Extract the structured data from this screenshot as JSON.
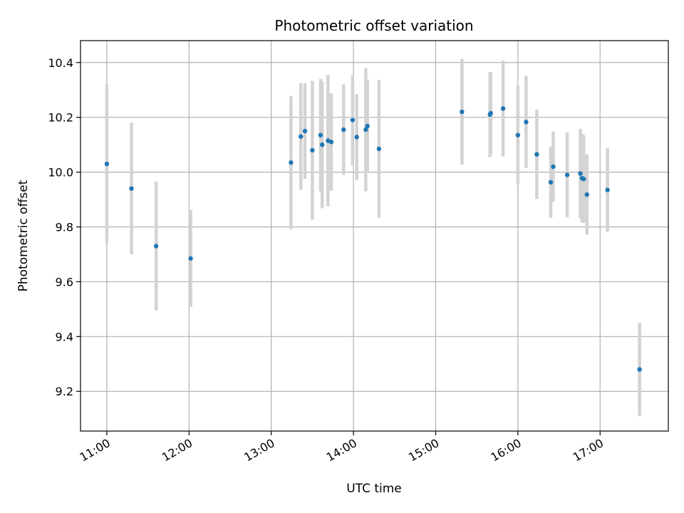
{
  "chart_data": {
    "type": "scatter",
    "title": "Photometric offset variation",
    "xlabel": "UTC time",
    "ylabel": "Photometric offset",
    "grid": true,
    "xlim_hours": [
      10.68,
      17.83
    ],
    "ylim": [
      9.055,
      10.48
    ],
    "x_ticks": [
      {
        "hour": 11,
        "label": "11:00"
      },
      {
        "hour": 12,
        "label": "12:00"
      },
      {
        "hour": 13,
        "label": "13:00"
      },
      {
        "hour": 14,
        "label": "14:00"
      },
      {
        "hour": 15,
        "label": "15:00"
      },
      {
        "hour": 16,
        "label": "16:00"
      },
      {
        "hour": 17,
        "label": "17:00"
      }
    ],
    "y_ticks": [
      {
        "value": 9.2,
        "label": "9.2"
      },
      {
        "value": 9.4,
        "label": "9.4"
      },
      {
        "value": 9.6,
        "label": "9.6"
      },
      {
        "value": 9.8,
        "label": "9.8"
      },
      {
        "value": 10.0,
        "label": "10.0"
      },
      {
        "value": 10.2,
        "label": "10.2"
      },
      {
        "value": 10.4,
        "label": "10.4"
      }
    ],
    "colors": {
      "point": "#1f77b4",
      "errorbar": "#d3d3d3",
      "grid": "#b0b0b0"
    },
    "points": [
      {
        "x": 11.0,
        "y": 10.03,
        "err": 0.29
      },
      {
        "x": 11.3,
        "y": 9.94,
        "err": 0.24
      },
      {
        "x": 11.6,
        "y": 9.73,
        "err": 0.235
      },
      {
        "x": 12.02,
        "y": 9.685,
        "err": 0.177
      },
      {
        "x": 13.24,
        "y": 10.035,
        "err": 0.243
      },
      {
        "x": 13.36,
        "y": 10.13,
        "err": 0.195
      },
      {
        "x": 13.41,
        "y": 10.15,
        "err": 0.175
      },
      {
        "x": 13.5,
        "y": 10.08,
        "err": 0.253
      },
      {
        "x": 13.6,
        "y": 10.135,
        "err": 0.205
      },
      {
        "x": 13.62,
        "y": 10.1,
        "err": 0.232
      },
      {
        "x": 13.69,
        "y": 10.115,
        "err": 0.24
      },
      {
        "x": 13.73,
        "y": 10.11,
        "err": 0.178
      },
      {
        "x": 13.88,
        "y": 10.155,
        "err": 0.165
      },
      {
        "x": 13.99,
        "y": 10.19,
        "err": 0.165
      },
      {
        "x": 14.04,
        "y": 10.128,
        "err": 0.157
      },
      {
        "x": 14.15,
        "y": 10.155,
        "err": 0.225
      },
      {
        "x": 14.17,
        "y": 10.168,
        "err": 0.17
      },
      {
        "x": 14.31,
        "y": 10.085,
        "err": 0.252
      },
      {
        "x": 15.32,
        "y": 10.22,
        "err": 0.193
      },
      {
        "x": 15.66,
        "y": 10.21,
        "err": 0.155
      },
      {
        "x": 15.67,
        "y": 10.215,
        "err": 0.15
      },
      {
        "x": 15.82,
        "y": 10.232,
        "err": 0.175
      },
      {
        "x": 16.0,
        "y": 10.135,
        "err": 0.18
      },
      {
        "x": 16.1,
        "y": 10.183,
        "err": 0.168
      },
      {
        "x": 16.23,
        "y": 10.065,
        "err": 0.163
      },
      {
        "x": 16.4,
        "y": 9.963,
        "err": 0.13
      },
      {
        "x": 16.43,
        "y": 10.02,
        "err": 0.128
      },
      {
        "x": 16.6,
        "y": 9.99,
        "err": 0.155
      },
      {
        "x": 16.76,
        "y": 9.995,
        "err": 0.163
      },
      {
        "x": 16.78,
        "y": 9.978,
        "err": 0.162
      },
      {
        "x": 16.8,
        "y": 9.975,
        "err": 0.16
      },
      {
        "x": 16.84,
        "y": 9.918,
        "err": 0.147
      },
      {
        "x": 17.09,
        "y": 9.935,
        "err": 0.153
      },
      {
        "x": 17.48,
        "y": 9.28,
        "err": 0.17
      }
    ]
  }
}
